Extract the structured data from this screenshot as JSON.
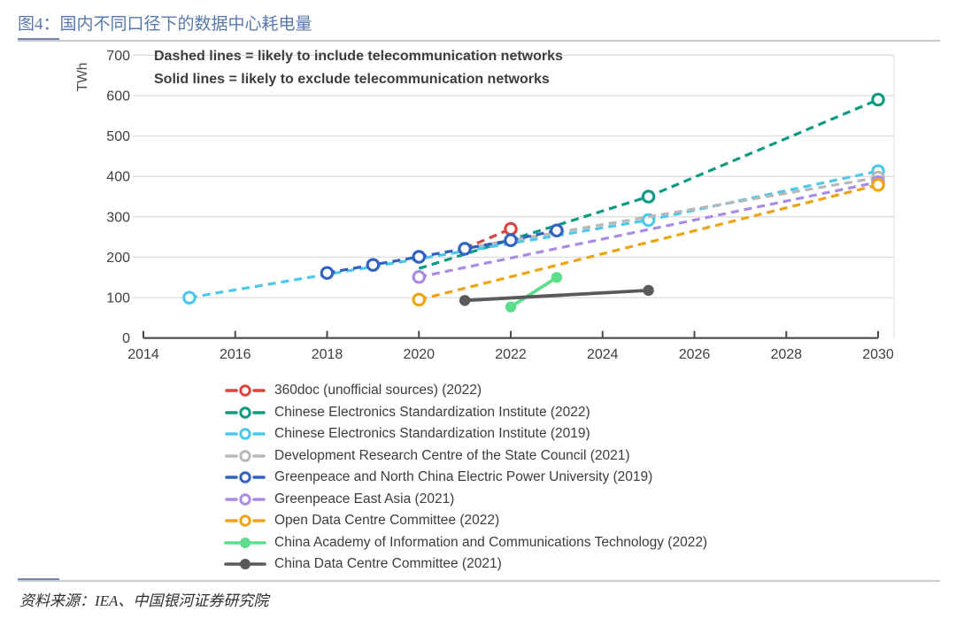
{
  "figure": {
    "title": "图4：国内不同口径下的数据中心耗电量"
  },
  "source": {
    "text": "资料来源：IEA、中国银河证券研究院"
  },
  "chart_data": {
    "type": "line",
    "title": "图4：国内不同口径下的数据中心耗电量",
    "ylabel": "TWh",
    "xlabel": "",
    "ylim": [
      0,
      700
    ],
    "xlim": [
      2014,
      2030
    ],
    "y_ticks": [
      0,
      100,
      200,
      300,
      400,
      500,
      600,
      700
    ],
    "x_ticks": [
      2014,
      2016,
      2018,
      2020,
      2022,
      2024,
      2026,
      2028,
      2030
    ],
    "grid": "horizontal",
    "legend_position": "bottom-left",
    "annotations": [
      "Dashed lines = likely to include telecommunication networks",
      "Solid lines = likely to exclude telecommunication networks"
    ],
    "series": [
      {
        "name": "360doc (unofficial sources) (2022)",
        "color": "#d9453c",
        "dashed": true,
        "marker": "open",
        "points": [
          {
            "x": 2021,
            "y": 222,
            "m": false
          },
          {
            "x": 2022,
            "y": 270,
            "m": true
          }
        ]
      },
      {
        "name": "Chinese Electronics Standardization Institute (2022)",
        "color": "#0b9a83",
        "dashed": true,
        "marker": "open",
        "points": [
          {
            "x": 2020,
            "y": 172,
            "m": false
          },
          {
            "x": 2025,
            "y": 350,
            "m": true
          },
          {
            "x": 2030,
            "y": 590,
            "m": true
          }
        ]
      },
      {
        "name": "Chinese Electronics Standardization Institute (2019)",
        "color": "#4cc8ec",
        "dashed": true,
        "marker": "open",
        "points": [
          {
            "x": 2015,
            "y": 100,
            "m": true
          },
          {
            "x": 2025,
            "y": 292,
            "m": true
          },
          {
            "x": 2030,
            "y": 413,
            "m": true
          }
        ]
      },
      {
        "name": "Development Research Centre of the State Council (2021)",
        "color": "#b8b8b8",
        "dashed": true,
        "marker": "open",
        "points": [
          {
            "x": 2021,
            "y": 222,
            "m": false
          },
          {
            "x": 2030,
            "y": 397,
            "m": true
          }
        ]
      },
      {
        "name": "Greenpeace and North China Electric Power University (2019)",
        "color": "#3161c1",
        "dashed": true,
        "marker": "open",
        "points": [
          {
            "x": 2018,
            "y": 161,
            "m": true
          },
          {
            "x": 2019,
            "y": 181,
            "m": true
          },
          {
            "x": 2020,
            "y": 201,
            "m": true
          },
          {
            "x": 2021,
            "y": 221,
            "m": true
          },
          {
            "x": 2022,
            "y": 242,
            "m": true
          },
          {
            "x": 2023,
            "y": 266,
            "m": true
          }
        ]
      },
      {
        "name": "Greenpeace East Asia (2021)",
        "color": "#a98be4",
        "dashed": true,
        "marker": "open",
        "points": [
          {
            "x": 2020,
            "y": 151,
            "m": true
          },
          {
            "x": 2030,
            "y": 386,
            "m": true
          }
        ]
      },
      {
        "name": "Open Data Centre Committee (2022)",
        "color": "#eda410",
        "dashed": true,
        "marker": "open",
        "points": [
          {
            "x": 2020,
            "y": 95,
            "m": true
          },
          {
            "x": 2030,
            "y": 379,
            "m": true
          }
        ]
      },
      {
        "name": "China Academy of Information and Communications Technology (2022)",
        "color": "#5edd8a",
        "dashed": false,
        "marker": "filled",
        "points": [
          {
            "x": 2022,
            "y": 77,
            "m": true
          },
          {
            "x": 2023,
            "y": 150,
            "m": true
          }
        ]
      },
      {
        "name": "China Data Centre Committee (2021)",
        "color": "#5a5a5a",
        "dashed": false,
        "marker": "filled",
        "points": [
          {
            "x": 2021,
            "y": 93,
            "m": true
          },
          {
            "x": 2025,
            "y": 118,
            "m": true
          }
        ]
      }
    ]
  }
}
